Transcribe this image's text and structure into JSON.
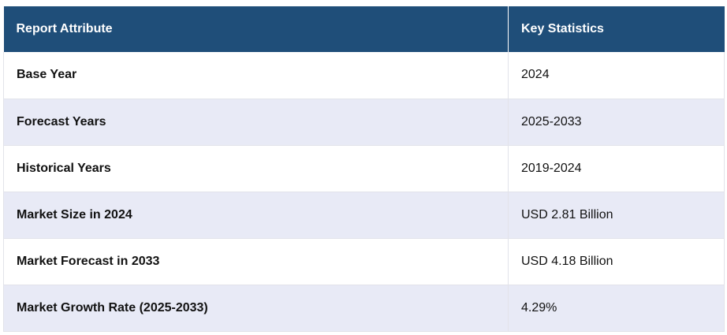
{
  "table": {
    "headers": [
      "Report Attribute",
      "Key Statistics"
    ],
    "rows": [
      {
        "attribute": "Base Year",
        "value": "2024"
      },
      {
        "attribute": "Forecast Years",
        "value": "2025-2033"
      },
      {
        "attribute": "Historical Years",
        "value": "2019-2024"
      },
      {
        "attribute": "Market Size in 2024",
        "value": "USD 2.81 Billion"
      },
      {
        "attribute": "Market Forecast in 2033",
        "value": "USD 4.18 Billion"
      },
      {
        "attribute": "Market Growth Rate (2025-2033)",
        "value": "4.29%"
      }
    ]
  },
  "colors": {
    "header_bg": "#1f4e79",
    "header_text": "#ffffff",
    "alt_row_bg": "#e8eaf6",
    "row_bg": "#ffffff"
  }
}
